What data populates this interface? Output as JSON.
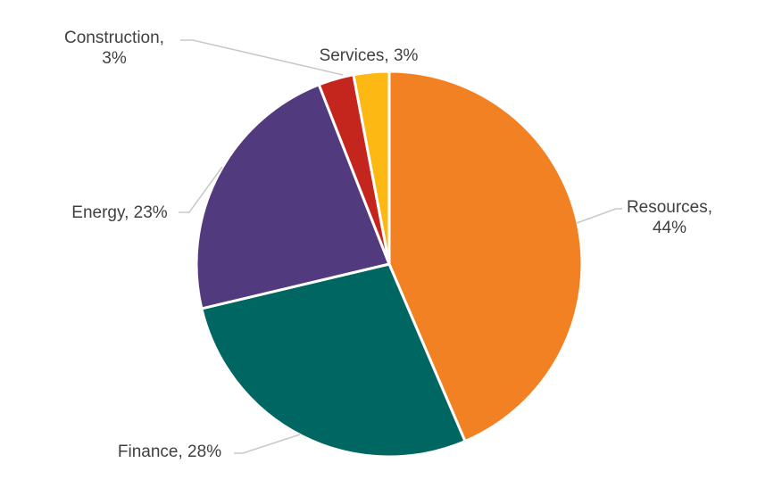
{
  "chart_data": {
    "type": "pie",
    "title": "",
    "start_angle_deg": 0,
    "direction": "clockwise",
    "slices": [
      {
        "name": "Resources",
        "value": 44,
        "label": [
          "Resources,",
          "44%"
        ],
        "color": "#F28123"
      },
      {
        "name": "Finance",
        "value": 28,
        "label": [
          "Finance, 28%"
        ],
        "color": "#006661"
      },
      {
        "name": "Energy",
        "value": 23,
        "label": [
          "Energy, 23%"
        ],
        "color": "#523A7E"
      },
      {
        "name": "Construction",
        "value": 3,
        "label": [
          "Construction,",
          "3%"
        ],
        "color": "#C4261D"
      },
      {
        "name": "Services",
        "value": 3,
        "label": [
          "Services, 3%"
        ],
        "color": "#FDB813"
      }
    ],
    "legend": "none",
    "data_labels": "outside-with-leader-lines"
  }
}
